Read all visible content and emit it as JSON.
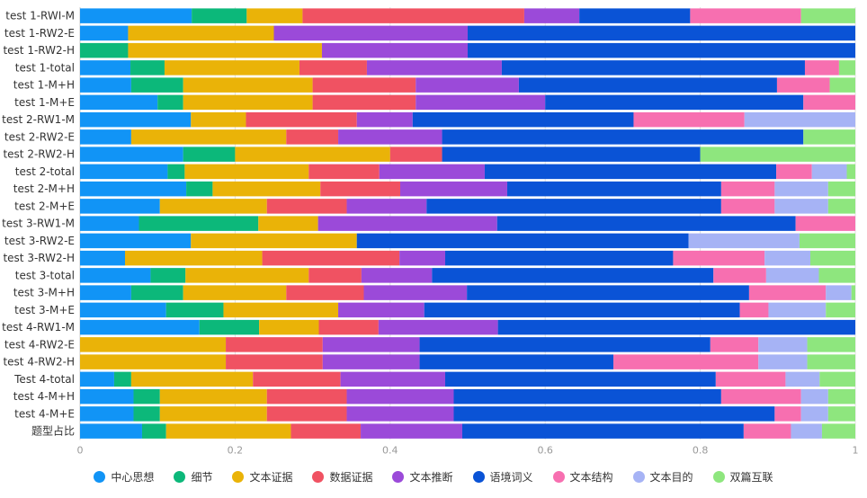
{
  "chart_data": {
    "type": "bar",
    "orientation": "horizontal",
    "stacked": true,
    "categories": [
      "test 1-RWI-M",
      "test 1-RW2-E",
      "test 1-RW2-H",
      "test 1-total",
      "test 1-M+H",
      "test 1-M+E",
      "test 2-RW1-M",
      "test 2-RW2-E",
      "test 2-RW2-H",
      "test 2-total",
      "test 2-M+H",
      "test 2-M+E",
      "test 3-RW1-M",
      "test 3-RW2-E",
      "test 3-RW2-H",
      "test 3-total",
      "test 3-M+H",
      "test 3-M+E",
      "test 4-RW1-M",
      "test 4-RW2-E",
      "test 4-RW2-H",
      "Test 4-total",
      "test 4-M+H",
      "test 4-M+E",
      "题型占比"
    ],
    "series": [
      {
        "name": "中心思想",
        "color": "#1194f6",
        "values": [
          0.144,
          0.062,
          0.0,
          0.065,
          0.066,
          0.1,
          0.143,
          0.066,
          0.133,
          0.113,
          0.137,
          0.103,
          0.076,
          0.143,
          0.058,
          0.091,
          0.066,
          0.111,
          0.154,
          0.0,
          0.0,
          0.044,
          0.069,
          0.069,
          0.08
        ]
      },
      {
        "name": "细节",
        "color": "#0cb87a",
        "values": [
          0.071,
          0.0,
          0.062,
          0.044,
          0.067,
          0.033,
          0.0,
          0.0,
          0.067,
          0.022,
          0.034,
          0.0,
          0.154,
          0.0,
          0.0,
          0.045,
          0.067,
          0.074,
          0.077,
          0.0,
          0.0,
          0.022,
          0.034,
          0.034,
          0.031
        ]
      },
      {
        "name": "文本证据",
        "color": "#eab308",
        "values": [
          0.072,
          0.188,
          0.25,
          0.174,
          0.167,
          0.167,
          0.071,
          0.2,
          0.2,
          0.16,
          0.139,
          0.138,
          0.077,
          0.214,
          0.177,
          0.159,
          0.133,
          0.148,
          0.077,
          0.188,
          0.188,
          0.157,
          0.138,
          0.138,
          0.161
        ]
      },
      {
        "name": "数据证据",
        "color": "#f05262",
        "values": [
          0.286,
          0.0,
          0.0,
          0.087,
          0.133,
          0.133,
          0.143,
          0.067,
          0.067,
          0.091,
          0.103,
          0.103,
          0.0,
          0.0,
          0.177,
          0.068,
          0.1,
          0.0,
          0.077,
          0.125,
          0.125,
          0.113,
          0.103,
          0.103,
          0.09
        ]
      },
      {
        "name": "文本推断",
        "color": "#9b4ad9",
        "values": [
          0.071,
          0.25,
          0.188,
          0.174,
          0.133,
          0.167,
          0.072,
          0.134,
          0.0,
          0.136,
          0.138,
          0.103,
          0.231,
          0.0,
          0.059,
          0.091,
          0.133,
          0.111,
          0.154,
          0.125,
          0.125,
          0.135,
          0.138,
          0.138,
          0.131
        ]
      },
      {
        "name": "语境词义",
        "color": "#0a53d6",
        "values": [
          0.143,
          0.5,
          0.5,
          0.391,
          0.333,
          0.333,
          0.285,
          0.466,
          0.333,
          0.376,
          0.276,
          0.38,
          0.385,
          0.428,
          0.294,
          0.363,
          0.364,
          0.407,
          0.461,
          0.375,
          0.25,
          0.349,
          0.345,
          0.414,
          0.363
        ]
      },
      {
        "name": "文本结构",
        "color": "#f76fb0",
        "values": [
          0.143,
          0.0,
          0.0,
          0.044,
          0.068,
          0.067,
          0.143,
          0.0,
          0.0,
          0.046,
          0.069,
          0.069,
          0.077,
          0.0,
          0.118,
          0.068,
          0.099,
          0.037,
          0.0,
          0.062,
          0.187,
          0.09,
          0.103,
          0.034,
          0.061
        ]
      },
      {
        "name": "文本目的",
        "color": "#a6b3f5",
        "values": [
          0.0,
          0.0,
          0.0,
          0.0,
          0.0,
          0.0,
          0.143,
          0.0,
          0.0,
          0.045,
          0.069,
          0.069,
          0.0,
          0.143,
          0.059,
          0.068,
          0.033,
          0.074,
          0.0,
          0.063,
          0.063,
          0.044,
          0.035,
          0.035,
          0.04
        ]
      },
      {
        "name": "双篇互联",
        "color": "#8ee67e",
        "values": [
          0.07,
          0.0,
          0.0,
          0.021,
          0.033,
          0.0,
          0.0,
          0.067,
          0.2,
          0.011,
          0.035,
          0.035,
          0.0,
          0.072,
          0.058,
          0.047,
          0.005,
          0.038,
          0.0,
          0.062,
          0.062,
          0.046,
          0.035,
          0.035,
          0.043
        ]
      }
    ],
    "xlim": [
      0,
      1
    ],
    "xticks": [
      "0",
      "0.2",
      "0.4",
      "0.6",
      "0.8",
      "1"
    ],
    "grid": true,
    "legend_position": "bottom"
  }
}
